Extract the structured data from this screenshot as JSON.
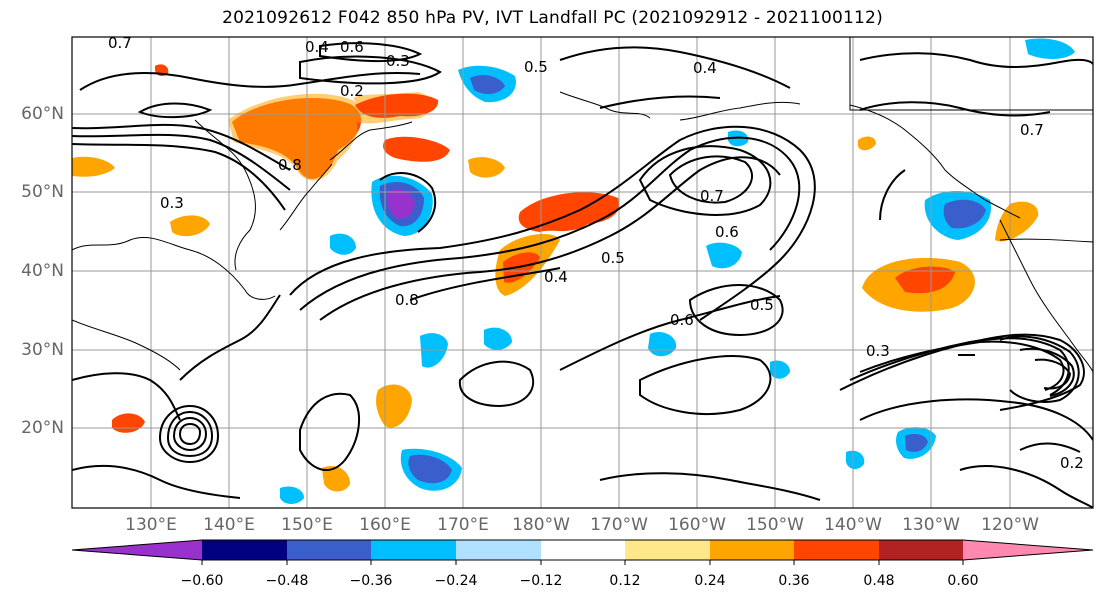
{
  "title": "2021092612 F042 850 hPa PV, IVT Landfall PC (2021092912 - 2021100112)",
  "map": {
    "lat_labels": [
      "60°N",
      "50°N",
      "40°N",
      "30°N",
      "20°N"
    ],
    "lon_labels": [
      "130°E",
      "140°E",
      "150°E",
      "160°E",
      "170°E",
      "180°W",
      "170°W",
      "160°W",
      "150°W",
      "140°W",
      "130°W",
      "120°W"
    ],
    "contour_labels": [
      "0.7",
      "0.6",
      "0.5",
      "0.4",
      "0.3",
      "0.2",
      "0.8",
      "0.7",
      "0.6",
      "0.5",
      "0.4",
      "0.3",
      "0.8",
      "0.7",
      "0.6",
      "0.5",
      "0.4",
      "0.3",
      "0.2"
    ],
    "colors": {
      "land": "#ffffff",
      "grid": "#999999",
      "contour": "#000000"
    }
  },
  "colorbar": {
    "ticks": [
      "−0.60",
      "−0.48",
      "−0.36",
      "−0.24",
      "−0.12",
      "0.12",
      "0.24",
      "0.36",
      "0.48",
      "0.60"
    ],
    "colors": [
      "#9932cc",
      "#000080",
      "#3a5fcd",
      "#00bfff",
      "#b0e2ff",
      "#ffffff",
      "#ffe78a",
      "#ffa500",
      "#ff4500",
      "#b22222",
      "#ff88b0"
    ]
  }
}
